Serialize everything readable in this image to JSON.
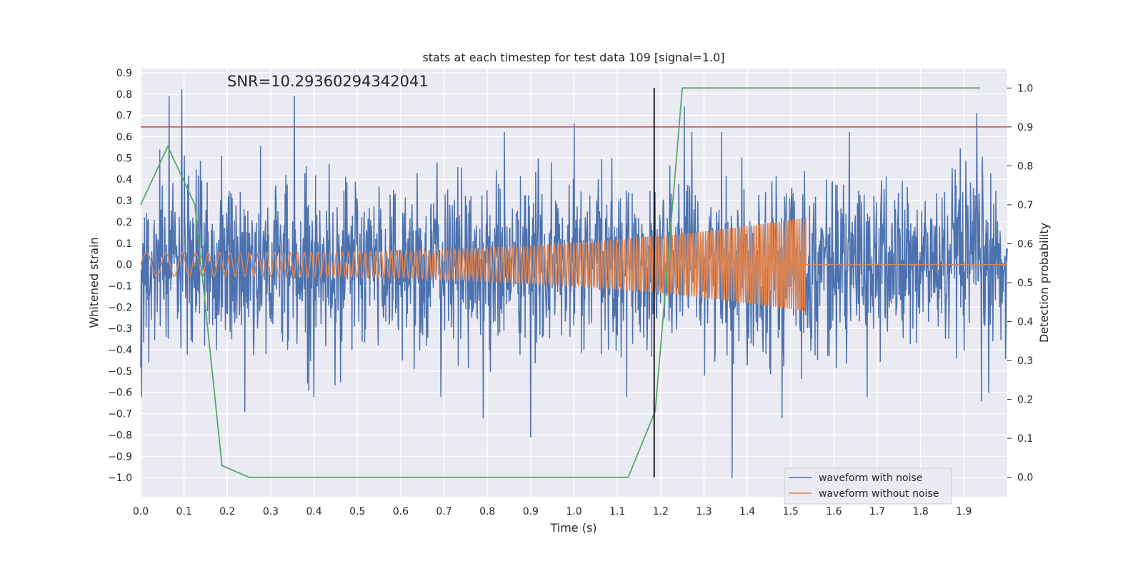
{
  "chart_data": {
    "type": "line",
    "title": "stats at each timestep for test data 109 [signal=1.0]",
    "annotation": "SNR=10.29360294342041",
    "xlabel": "Time (s)",
    "ylabel_left": "Whitened strain",
    "ylabel_right": "Detection probability",
    "xlim": [
      0.0,
      2.0
    ],
    "ylim_left": [
      -1.09,
      0.92
    ],
    "ylim_right": [
      -0.05,
      1.05
    ],
    "grid": true,
    "legend_position": "lower-right",
    "x_ticks": [
      "0.0",
      "0.1",
      "0.2",
      "0.3",
      "0.4",
      "0.5",
      "0.6",
      "0.7",
      "0.8",
      "0.9",
      "1.0",
      "1.1",
      "1.2",
      "1.3",
      "1.4",
      "1.5",
      "1.6",
      "1.7",
      "1.8",
      "1.9"
    ],
    "y_ticks_left": [
      "0.9",
      "0.8",
      "0.7",
      "0.6",
      "0.5",
      "0.4",
      "0.3",
      "0.2",
      "0.1",
      "0.0",
      "−0.1",
      "−0.2",
      "−0.3",
      "−0.4",
      "−0.5",
      "−0.6",
      "−0.7",
      "−0.8",
      "−0.9",
      "−1.0"
    ],
    "y_ticks_right": [
      "1.0",
      "0.9",
      "0.8",
      "0.7",
      "0.6",
      "0.5",
      "0.4",
      "0.3",
      "0.2",
      "0.1",
      "0.0"
    ],
    "series": [
      {
        "name": "waveform with noise",
        "axis": "left",
        "color": "#4c72b0",
        "duration": 2.0,
        "samples": 2048,
        "amplitude_std": 0.2,
        "peaks": [
          {
            "x": 0.065,
            "y": 0.79
          },
          {
            "x": 0.095,
            "y": 0.82
          },
          {
            "x": 0.355,
            "y": 0.79
          },
          {
            "x": 1.0,
            "y": 0.66
          },
          {
            "x": 1.255,
            "y": 0.74
          },
          {
            "x": 1.93,
            "y": 0.71
          },
          {
            "x": 0.9,
            "y": -0.81
          },
          {
            "x": 0.79,
            "y": -0.72
          },
          {
            "x": 1.365,
            "y": -1.0
          },
          {
            "x": 1.48,
            "y": -0.72
          },
          {
            "x": 1.94,
            "y": -0.64
          },
          {
            "x": 0.24,
            "y": -0.69
          }
        ]
      },
      {
        "name": "waveform without noise",
        "axis": "left",
        "color": "#dd8452",
        "chirp": {
          "t_start": 0.0,
          "t_merge": 1.535,
          "f_start": 18,
          "f_end": 200,
          "amp_start": 0.055,
          "amp_end": 0.22
        },
        "x_end": 2.0
      },
      {
        "name": "Detection probability",
        "axis": "right",
        "color": "#55a868",
        "x": [
          0.0,
          0.0625,
          0.125,
          0.1875,
          0.25,
          1.125,
          1.1875,
          1.25,
          1.9375
        ],
        "y": [
          0.7,
          0.85,
          0.7,
          0.03,
          0.0,
          0.0,
          0.17,
          1.0,
          1.0
        ]
      }
    ],
    "threshold_line": {
      "axis": "right",
      "value": 0.9,
      "color": "#c44e52"
    },
    "vertical_line": {
      "x": 1.185,
      "y_right_range": [
        0.0,
        1.0
      ],
      "color": "#000000"
    },
    "legend": [
      {
        "label": "waveform with noise",
        "color": "#4c72b0"
      },
      {
        "label": "waveform without noise",
        "color": "#dd8452"
      }
    ]
  }
}
